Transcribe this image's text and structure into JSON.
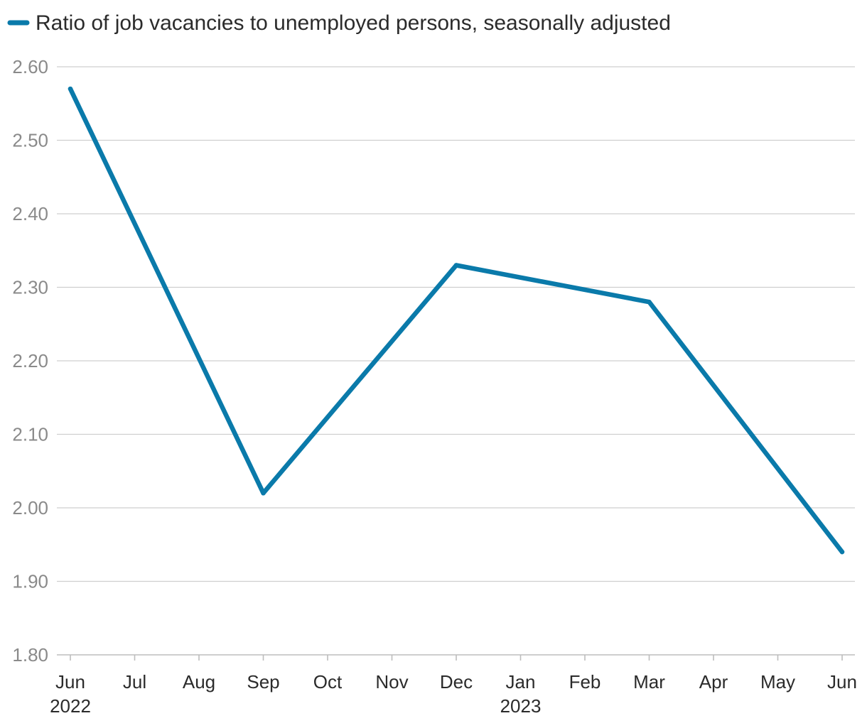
{
  "chart_data": {
    "type": "line",
    "title": "",
    "xlabel": "",
    "ylabel": "",
    "categories": [
      "Jun",
      "Jul",
      "Aug",
      "Sep",
      "Oct",
      "Nov",
      "Dec",
      "Jan",
      "Feb",
      "Mar",
      "Apr",
      "May",
      "Jun"
    ],
    "year_labels": [
      {
        "index": 0,
        "label": "2022"
      },
      {
        "index": 7,
        "label": "2023"
      }
    ],
    "series": [
      {
        "name": "Ratio of job vacancies to unemployed persons, seasonally adjusted",
        "color": "#0a7aaa",
        "points": [
          {
            "index": 0,
            "value": 2.57
          },
          {
            "index": 3,
            "value": 2.02
          },
          {
            "index": 6,
            "value": 2.33
          },
          {
            "index": 9,
            "value": 2.28
          },
          {
            "index": 12,
            "value": 1.94
          }
        ]
      }
    ],
    "yticks": [
      "1.80",
      "1.90",
      "2.00",
      "2.10",
      "2.20",
      "2.30",
      "2.40",
      "2.50",
      "2.60"
    ],
    "ylim": [
      1.8,
      2.6
    ],
    "grid": true,
    "legend_position": "top-left"
  },
  "colors": {
    "series": "#0a7aaa",
    "grid": "#cfcfcf",
    "axis": "#bdbdbd"
  }
}
